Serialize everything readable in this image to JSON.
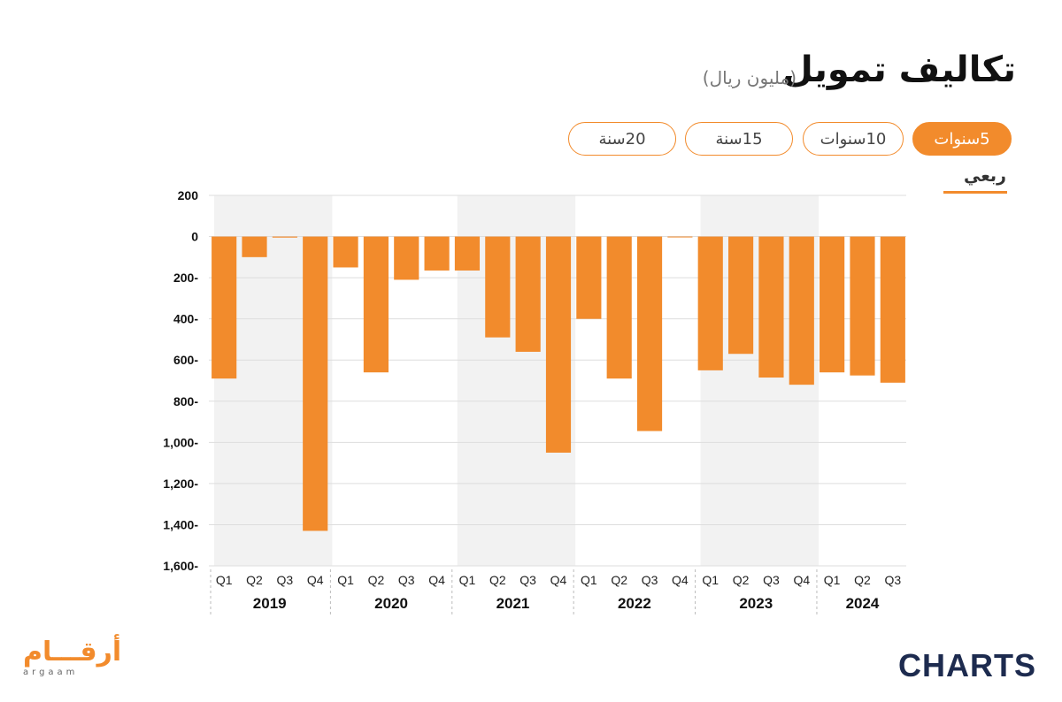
{
  "header": {
    "title": "تكاليف تمويل",
    "unit": "(مليون ريال)"
  },
  "tabs": [
    {
      "label": "5سنوات",
      "active": true
    },
    {
      "label": "10سنوات",
      "active": false
    },
    {
      "label": "15سنة",
      "active": false
    },
    {
      "label": "20سنة",
      "active": false
    }
  ],
  "frequency_label": "ربعي",
  "colors": {
    "accent": "#f28b2c",
    "band": "#f2f2f2",
    "grid": "#dddddd"
  },
  "chart_data": {
    "type": "bar",
    "title": "تكاليف تمويل",
    "ylabel": "(مليون ريال)",
    "ylim": [
      -1600,
      200
    ],
    "yticks": [
      200,
      0,
      -200,
      -400,
      -600,
      -800,
      -1000,
      -1200,
      -1400,
      -1600
    ],
    "ytick_labels": [
      "200",
      "0",
      "200-",
      "400-",
      "600-",
      "800-",
      "1,000-",
      "1,200-",
      "1,400-",
      "1,600-"
    ],
    "grid": true,
    "years": [
      {
        "year": "2019",
        "quarters": [
          "Q1",
          "Q2",
          "Q3",
          "Q4"
        ],
        "values": [
          -690,
          -100,
          -5,
          -1430
        ]
      },
      {
        "year": "2020",
        "quarters": [
          "Q1",
          "Q2",
          "Q3",
          "Q4"
        ],
        "values": [
          -150,
          -660,
          -210,
          -165
        ]
      },
      {
        "year": "2021",
        "quarters": [
          "Q1",
          "Q2",
          "Q3",
          "Q4"
        ],
        "values": [
          -165,
          -490,
          -560,
          -1050
        ]
      },
      {
        "year": "2022",
        "quarters": [
          "Q1",
          "Q2",
          "Q3",
          "Q4"
        ],
        "values": [
          -400,
          -690,
          -945,
          0
        ]
      },
      {
        "year": "2023",
        "quarters": [
          "Q1",
          "Q2",
          "Q3",
          "Q4"
        ],
        "values": [
          -650,
          -570,
          -685,
          -720
        ]
      },
      {
        "year": "2024",
        "quarters": [
          "Q1",
          "Q2",
          "Q3"
        ],
        "values": [
          -660,
          -675,
          -710
        ]
      }
    ]
  },
  "logos": {
    "left": "أرقـــام",
    "left_sub": "argaam",
    "right": "CHARTS"
  }
}
